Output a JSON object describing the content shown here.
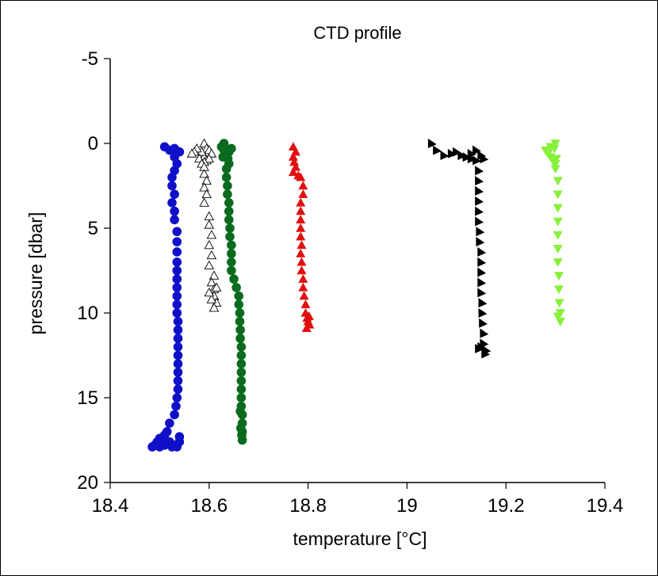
{
  "chart_data": {
    "type": "scatter",
    "title": "CTD profile",
    "xlabel": "temperature [°C]",
    "ylabel": "pressure [dbar]",
    "xlim": [
      18.4,
      19.4
    ],
    "ylim": [
      20,
      -5
    ],
    "y_inverted": true,
    "grid": false,
    "x_ticks": [
      "18.4",
      "18.6",
      "18.8",
      "19",
      "19.2",
      "19.4"
    ],
    "y_ticks": [
      "-5",
      "0",
      "5",
      "10",
      "15",
      "20"
    ],
    "series": [
      {
        "marker": "circle",
        "color": "#1010c8",
        "filled": true,
        "points": [
          [
            18.51,
            0.2
          ],
          [
            18.53,
            0.3
          ],
          [
            18.52,
            0.4
          ],
          [
            18.54,
            0.5
          ],
          [
            18.53,
            0.8
          ],
          [
            18.535,
            1.2
          ],
          [
            18.53,
            1.6
          ],
          [
            18.525,
            2.0
          ],
          [
            18.525,
            2.5
          ],
          [
            18.53,
            3.0
          ],
          [
            18.525,
            3.5
          ],
          [
            18.53,
            4.0
          ],
          [
            18.53,
            4.5
          ],
          [
            18.535,
            5.2
          ],
          [
            18.535,
            5.8
          ],
          [
            18.535,
            6.4
          ],
          [
            18.535,
            7.0
          ],
          [
            18.535,
            7.5
          ],
          [
            18.535,
            8.0
          ],
          [
            18.535,
            8.5
          ],
          [
            18.535,
            9.0
          ],
          [
            18.535,
            9.5
          ],
          [
            18.535,
            10.0
          ],
          [
            18.537,
            10.5
          ],
          [
            18.537,
            11.0
          ],
          [
            18.537,
            11.5
          ],
          [
            18.537,
            12.0
          ],
          [
            18.537,
            12.5
          ],
          [
            18.537,
            13.0
          ],
          [
            18.537,
            13.5
          ],
          [
            18.537,
            14.0
          ],
          [
            18.537,
            14.5
          ],
          [
            18.535,
            15.0
          ],
          [
            18.533,
            15.5
          ],
          [
            18.53,
            16.0
          ],
          [
            18.52,
            16.5
          ],
          [
            18.515,
            17.0
          ],
          [
            18.51,
            17.2
          ],
          [
            18.5,
            17.4
          ],
          [
            18.495,
            17.6
          ],
          [
            18.49,
            17.8
          ],
          [
            18.485,
            17.9
          ],
          [
            18.5,
            17.9
          ],
          [
            18.51,
            17.8
          ],
          [
            18.52,
            17.6
          ],
          [
            18.525,
            17.9
          ],
          [
            18.53,
            17.8
          ],
          [
            18.535,
            17.9
          ],
          [
            18.54,
            17.6
          ],
          [
            18.54,
            17.3
          ],
          [
            18.505,
            17.5
          ],
          [
            18.515,
            17.7
          ]
        ]
      },
      {
        "marker": "triangle-up",
        "color": "#000000",
        "filled": false,
        "points": [
          [
            18.59,
            0.0
          ],
          [
            18.595,
            0.3
          ],
          [
            18.6,
            0.4
          ],
          [
            18.605,
            0.6
          ],
          [
            18.585,
            0.7
          ],
          [
            18.59,
            0.8
          ],
          [
            18.595,
            1.0
          ],
          [
            18.6,
            0.9
          ],
          [
            18.59,
            1.1
          ],
          [
            18.585,
            0.5
          ],
          [
            18.575,
            0.3
          ],
          [
            18.57,
            0.5
          ],
          [
            18.565,
            0.6
          ],
          [
            18.58,
            0.9
          ],
          [
            18.585,
            1.2
          ],
          [
            18.59,
            1.4
          ],
          [
            18.59,
            1.8
          ],
          [
            18.595,
            2.2
          ],
          [
            18.59,
            2.6
          ],
          [
            18.595,
            3.0
          ],
          [
            18.59,
            3.5
          ],
          [
            18.6,
            4.3
          ],
          [
            18.6,
            4.8
          ],
          [
            18.605,
            5.4
          ],
          [
            18.6,
            6.0
          ],
          [
            18.605,
            6.6
          ],
          [
            18.6,
            7.2
          ],
          [
            18.61,
            7.8
          ],
          [
            18.605,
            8.2
          ],
          [
            18.61,
            8.6
          ],
          [
            18.61,
            9.0
          ],
          [
            18.615,
            9.4
          ],
          [
            18.61,
            9.7
          ],
          [
            18.605,
            9.2
          ],
          [
            18.6,
            8.8
          ],
          [
            18.615,
            8.5
          ]
        ]
      },
      {
        "marker": "circle",
        "color": "#0a6b1e",
        "filled": true,
        "points": [
          [
            18.63,
            0.0
          ],
          [
            18.625,
            0.2
          ],
          [
            18.63,
            0.4
          ],
          [
            18.64,
            0.5
          ],
          [
            18.635,
            0.7
          ],
          [
            18.628,
            0.8
          ],
          [
            18.638,
            0.9
          ],
          [
            18.645,
            0.3
          ],
          [
            18.64,
            1.2
          ],
          [
            18.635,
            1.5
          ],
          [
            18.635,
            2.0
          ],
          [
            18.637,
            2.5
          ],
          [
            18.637,
            3.0
          ],
          [
            18.64,
            3.5
          ],
          [
            18.64,
            4.0
          ],
          [
            18.64,
            4.5
          ],
          [
            18.642,
            5.0
          ],
          [
            18.642,
            5.5
          ],
          [
            18.645,
            6.0
          ],
          [
            18.645,
            6.5
          ],
          [
            18.645,
            7.0
          ],
          [
            18.645,
            7.5
          ],
          [
            18.65,
            8.0
          ],
          [
            18.655,
            8.5
          ],
          [
            18.66,
            9.0
          ],
          [
            18.66,
            9.5
          ],
          [
            18.662,
            10.0
          ],
          [
            18.662,
            10.5
          ],
          [
            18.663,
            11.0
          ],
          [
            18.663,
            11.5
          ],
          [
            18.665,
            12.0
          ],
          [
            18.665,
            12.5
          ],
          [
            18.665,
            13.0
          ],
          [
            18.665,
            13.5
          ],
          [
            18.665,
            14.0
          ],
          [
            18.665,
            14.5
          ],
          [
            18.665,
            15.0
          ],
          [
            18.665,
            15.5
          ],
          [
            18.667,
            16.0
          ],
          [
            18.667,
            16.5
          ],
          [
            18.667,
            17.0
          ],
          [
            18.667,
            17.5
          ],
          [
            18.664,
            16.8
          ],
          [
            18.666,
            17.2
          ],
          [
            18.663,
            15.8
          ]
        ]
      },
      {
        "marker": "triangle-up",
        "color": "#e01010",
        "filled": true,
        "points": [
          [
            18.77,
            0.2
          ],
          [
            18.775,
            0.5
          ],
          [
            18.77,
            0.8
          ],
          [
            18.772,
            1.1
          ],
          [
            18.775,
            1.4
          ],
          [
            18.77,
            1.7
          ],
          [
            18.78,
            1.9
          ],
          [
            18.785,
            2.0
          ],
          [
            18.79,
            2.5
          ],
          [
            18.79,
            3.0
          ],
          [
            18.785,
            3.5
          ],
          [
            18.785,
            4.0
          ],
          [
            18.785,
            4.5
          ],
          [
            18.785,
            5.0
          ],
          [
            18.785,
            5.5
          ],
          [
            18.787,
            6.0
          ],
          [
            18.785,
            6.5
          ],
          [
            18.787,
            7.0
          ],
          [
            18.787,
            7.5
          ],
          [
            18.79,
            8.0
          ],
          [
            18.79,
            8.5
          ],
          [
            18.792,
            9.0
          ],
          [
            18.795,
            9.5
          ],
          [
            18.795,
            10.0
          ],
          [
            18.798,
            10.3
          ],
          [
            18.8,
            10.5
          ],
          [
            18.803,
            10.7
          ],
          [
            18.797,
            10.9
          ],
          [
            18.802,
            10.2
          ]
        ]
      },
      {
        "marker": "triangle-right",
        "color": "#000000",
        "filled": true,
        "points": [
          [
            19.05,
            0.0
          ],
          [
            19.06,
            0.4
          ],
          [
            19.075,
            0.7
          ],
          [
            19.09,
            0.6
          ],
          [
            19.1,
            0.5
          ],
          [
            19.11,
            0.7
          ],
          [
            19.12,
            0.8
          ],
          [
            19.13,
            0.6
          ],
          [
            19.14,
            0.4
          ],
          [
            19.15,
            0.7
          ],
          [
            19.155,
            0.9
          ],
          [
            19.14,
            1.0
          ],
          [
            19.13,
            0.9
          ],
          [
            19.145,
            1.6
          ],
          [
            19.145,
            2.2
          ],
          [
            19.145,
            2.8
          ],
          [
            19.145,
            3.4
          ],
          [
            19.145,
            4.0
          ],
          [
            19.145,
            4.6
          ],
          [
            19.147,
            5.2
          ],
          [
            19.147,
            5.8
          ],
          [
            19.15,
            6.4
          ],
          [
            19.15,
            7.0
          ],
          [
            19.15,
            7.6
          ],
          [
            19.15,
            8.2
          ],
          [
            19.15,
            8.8
          ],
          [
            19.152,
            9.4
          ],
          [
            19.152,
            10.0
          ],
          [
            19.153,
            10.6
          ],
          [
            19.155,
            11.2
          ],
          [
            19.155,
            11.8
          ],
          [
            19.15,
            12.0
          ],
          [
            19.16,
            12.2
          ],
          [
            19.158,
            12.4
          ],
          [
            19.145,
            12.1
          ]
        ]
      },
      {
        "marker": "triangle-down",
        "color": "#86f03a",
        "filled": true,
        "points": [
          [
            19.3,
            0.0
          ],
          [
            19.29,
            0.2
          ],
          [
            19.28,
            0.4
          ],
          [
            19.285,
            0.6
          ],
          [
            19.29,
            0.8
          ],
          [
            19.295,
            1.0
          ],
          [
            19.3,
            1.2
          ],
          [
            19.3,
            1.5
          ],
          [
            19.305,
            2.2
          ],
          [
            19.305,
            3.0
          ],
          [
            19.305,
            3.8
          ],
          [
            19.305,
            4.6
          ],
          [
            19.305,
            5.4
          ],
          [
            19.305,
            6.2
          ],
          [
            19.305,
            7.0
          ],
          [
            19.307,
            7.8
          ],
          [
            19.307,
            8.6
          ],
          [
            19.308,
            9.4
          ],
          [
            19.31,
            10.0
          ],
          [
            19.31,
            10.5
          ],
          [
            19.305,
            10.2
          ],
          [
            19.298,
            0.3
          ],
          [
            19.302,
            0.9
          ]
        ]
      }
    ]
  }
}
